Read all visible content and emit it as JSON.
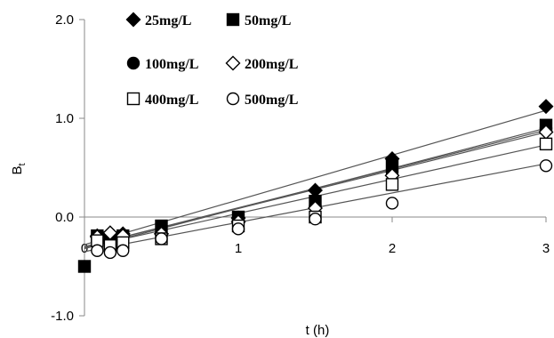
{
  "chart_data": {
    "type": "scatter",
    "xlabel": "t (h)",
    "ylabel": "B",
    "ylabel_subscript": "t",
    "xlim": [
      0,
      3
    ],
    "ylim": [
      -1.0,
      2.0
    ],
    "x_ticks": [
      "0",
      "1",
      "2",
      "3"
    ],
    "y_ticks": [
      "-1.0",
      "0.0",
      "1.0",
      "2.0"
    ],
    "grid": false,
    "legend_position": "top-left",
    "series": [
      {
        "name": "25mg/L",
        "marker": "diamond-filled",
        "x": [
          0.083,
          0.167,
          0.25,
          0.5,
          1,
          1.5,
          2,
          3
        ],
        "y": [
          -0.19,
          -0.17,
          -0.17,
          -0.17,
          -0.01,
          0.27,
          0.59,
          1.12
        ],
        "fit": [
          [
            0,
            -0.28
          ],
          [
            3,
            1.08
          ]
        ]
      },
      {
        "name": "50mg/L",
        "marker": "square-filled",
        "x": [
          0,
          0.083,
          0.167,
          0.25,
          0.5,
          1,
          1.5,
          2,
          3
        ],
        "y": [
          -0.5,
          -0.19,
          -0.21,
          -0.19,
          -0.09,
          0.0,
          0.16,
          0.52,
          0.93
        ],
        "fit": [
          [
            0,
            -0.32
          ],
          [
            3,
            0.9
          ]
        ]
      },
      {
        "name": "100mg/L",
        "marker": "circle-filled",
        "x": [
          0.083,
          0.167,
          0.25,
          0.5,
          1,
          1.5,
          2,
          3
        ],
        "y": [
          -0.21,
          -0.23,
          -0.22,
          -0.18,
          -0.04,
          0.11,
          0.45,
          0.9
        ],
        "fit": [
          [
            0,
            -0.3
          ],
          [
            3,
            0.88
          ]
        ]
      },
      {
        "name": "200mg/L",
        "marker": "diamond-open",
        "x": [
          0.083,
          0.167,
          0.25,
          0.5,
          1,
          1.5,
          2,
          3
        ],
        "y": [
          -0.2,
          -0.16,
          -0.19,
          -0.17,
          -0.05,
          0.09,
          0.42,
          0.86
        ],
        "fit": [
          [
            0,
            -0.3
          ],
          [
            3,
            0.86
          ]
        ]
      },
      {
        "name": "400mg/L",
        "marker": "square-open",
        "x": [
          0.083,
          0.167,
          0.25,
          0.5,
          1,
          1.5,
          2,
          3
        ],
        "y": [
          -0.24,
          -0.29,
          -0.26,
          -0.22,
          -0.09,
          0.0,
          0.33,
          0.74
        ],
        "fit": [
          [
            0,
            -0.31
          ],
          [
            3,
            0.73
          ]
        ]
      },
      {
        "name": "500mg/L",
        "marker": "circle-open",
        "x": [
          0.083,
          0.167,
          0.25,
          0.5,
          1,
          1.5,
          2,
          3
        ],
        "y": [
          -0.34,
          -0.36,
          -0.34,
          -0.22,
          -0.12,
          -0.02,
          0.14,
          0.52
        ],
        "fit": [
          [
            0,
            -0.35
          ],
          [
            3,
            0.54
          ]
        ]
      }
    ]
  }
}
